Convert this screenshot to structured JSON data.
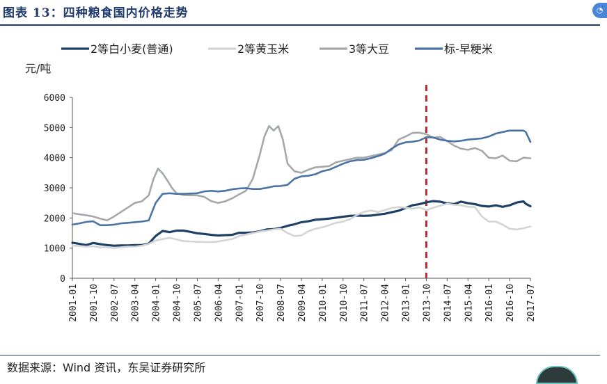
{
  "header": {
    "title": "图表 13：四种粮食国内价格走势"
  },
  "footer": {
    "source": "数据来源：Wind 资讯，东吴证券研究所"
  },
  "chart_data": {
    "type": "line",
    "ylabel": "元/吨",
    "ylim": [
      0,
      6000
    ],
    "yticks": [
      0,
      1000,
      2000,
      3000,
      4000,
      5000,
      6000
    ],
    "xlim": [
      "2001-01",
      "2017-07"
    ],
    "xticks": [
      "2001-01",
      "2001-10",
      "2002-07",
      "2003-04",
      "2004-01",
      "2004-10",
      "2005-07",
      "2006-04",
      "2007-01",
      "2007-10",
      "2008-07",
      "2009-04",
      "2010-01",
      "2010-10",
      "2011-07",
      "2012-04",
      "2013-01",
      "2013-10",
      "2014-07",
      "2015-04",
      "2016-01",
      "2016-10",
      "2017-07"
    ],
    "grid": false,
    "legend_position": "top",
    "reference_line": {
      "x": "2013-10",
      "style": "dashed",
      "color": "#c0282c"
    },
    "series": [
      {
        "name": "2等白小麦(普通)",
        "color": "#1e3f66",
        "points": [
          [
            "2001-01",
            1180
          ],
          [
            "2001-04",
            1140
          ],
          [
            "2001-07",
            1100
          ],
          [
            "2001-10",
            1170
          ],
          [
            "2002-01",
            1130
          ],
          [
            "2002-04",
            1100
          ],
          [
            "2002-07",
            1080
          ],
          [
            "2002-10",
            1090
          ],
          [
            "2003-01",
            1090
          ],
          [
            "2003-04",
            1100
          ],
          [
            "2003-07",
            1100
          ],
          [
            "2003-10",
            1150
          ],
          [
            "2004-01",
            1400
          ],
          [
            "2004-04",
            1570
          ],
          [
            "2004-07",
            1530
          ],
          [
            "2004-10",
            1580
          ],
          [
            "2005-01",
            1580
          ],
          [
            "2005-04",
            1540
          ],
          [
            "2005-07",
            1490
          ],
          [
            "2005-10",
            1470
          ],
          [
            "2006-01",
            1440
          ],
          [
            "2006-04",
            1420
          ],
          [
            "2006-07",
            1430
          ],
          [
            "2006-10",
            1440
          ],
          [
            "2007-01",
            1510
          ],
          [
            "2007-04",
            1510
          ],
          [
            "2007-07",
            1520
          ],
          [
            "2007-10",
            1560
          ],
          [
            "2008-01",
            1620
          ],
          [
            "2008-04",
            1630
          ],
          [
            "2008-07",
            1670
          ],
          [
            "2008-10",
            1740
          ],
          [
            "2009-01",
            1790
          ],
          [
            "2009-04",
            1860
          ],
          [
            "2009-07",
            1890
          ],
          [
            "2009-10",
            1940
          ],
          [
            "2010-01",
            1960
          ],
          [
            "2010-04",
            1980
          ],
          [
            "2010-07",
            2010
          ],
          [
            "2010-10",
            2040
          ],
          [
            "2011-01",
            2070
          ],
          [
            "2011-04",
            2080
          ],
          [
            "2011-07",
            2070
          ],
          [
            "2011-10",
            2080
          ],
          [
            "2012-01",
            2110
          ],
          [
            "2012-04",
            2140
          ],
          [
            "2012-07",
            2190
          ],
          [
            "2012-10",
            2240
          ],
          [
            "2013-01",
            2330
          ],
          [
            "2013-04",
            2420
          ],
          [
            "2013-07",
            2460
          ],
          [
            "2013-10",
            2520
          ],
          [
            "2014-01",
            2560
          ],
          [
            "2014-04",
            2540
          ],
          [
            "2014-07",
            2480
          ],
          [
            "2014-10",
            2460
          ],
          [
            "2015-01",
            2540
          ],
          [
            "2015-04",
            2490
          ],
          [
            "2015-07",
            2460
          ],
          [
            "2015-10",
            2400
          ],
          [
            "2016-01",
            2380
          ],
          [
            "2016-04",
            2420
          ],
          [
            "2016-07",
            2370
          ],
          [
            "2016-10",
            2420
          ],
          [
            "2017-01",
            2510
          ],
          [
            "2017-04",
            2550
          ],
          [
            "2017-05",
            2470
          ],
          [
            "2017-07",
            2390
          ]
        ]
      },
      {
        "name": "2等黄玉米",
        "color": "#d2d4d6",
        "points": [
          [
            "2001-01",
            1080
          ],
          [
            "2001-04",
            1070
          ],
          [
            "2001-07",
            1050
          ],
          [
            "2001-10",
            1060
          ],
          [
            "2002-01",
            1030
          ],
          [
            "2002-04",
            1030
          ],
          [
            "2002-07",
            1000
          ],
          [
            "2002-10",
            1030
          ],
          [
            "2003-01",
            1050
          ],
          [
            "2003-04",
            1050
          ],
          [
            "2003-07",
            1080
          ],
          [
            "2003-10",
            1140
          ],
          [
            "2004-01",
            1250
          ],
          [
            "2004-04",
            1300
          ],
          [
            "2004-07",
            1340
          ],
          [
            "2004-10",
            1290
          ],
          [
            "2005-01",
            1230
          ],
          [
            "2005-04",
            1220
          ],
          [
            "2005-07",
            1210
          ],
          [
            "2005-10",
            1200
          ],
          [
            "2006-01",
            1200
          ],
          [
            "2006-04",
            1220
          ],
          [
            "2006-07",
            1260
          ],
          [
            "2006-10",
            1300
          ],
          [
            "2007-01",
            1400
          ],
          [
            "2007-04",
            1450
          ],
          [
            "2007-07",
            1500
          ],
          [
            "2007-10",
            1550
          ],
          [
            "2008-01",
            1580
          ],
          [
            "2008-04",
            1620
          ],
          [
            "2008-07",
            1640
          ],
          [
            "2008-10",
            1500
          ],
          [
            "2009-01",
            1400
          ],
          [
            "2009-04",
            1420
          ],
          [
            "2009-07",
            1560
          ],
          [
            "2009-10",
            1640
          ],
          [
            "2010-01",
            1690
          ],
          [
            "2010-04",
            1760
          ],
          [
            "2010-07",
            1840
          ],
          [
            "2010-10",
            1880
          ],
          [
            "2011-01",
            1960
          ],
          [
            "2011-04",
            2100
          ],
          [
            "2011-07",
            2200
          ],
          [
            "2011-10",
            2250
          ],
          [
            "2012-01",
            2200
          ],
          [
            "2012-04",
            2260
          ],
          [
            "2012-07",
            2330
          ],
          [
            "2012-10",
            2360
          ],
          [
            "2013-01",
            2340
          ],
          [
            "2013-04",
            2310
          ],
          [
            "2013-07",
            2350
          ],
          [
            "2013-10",
            2260
          ],
          [
            "2014-01",
            2340
          ],
          [
            "2014-04",
            2410
          ],
          [
            "2014-07",
            2470
          ],
          [
            "2014-10",
            2440
          ],
          [
            "2015-01",
            2420
          ],
          [
            "2015-04",
            2370
          ],
          [
            "2015-07",
            2360
          ],
          [
            "2015-10",
            2050
          ],
          [
            "2016-01",
            1880
          ],
          [
            "2016-04",
            1880
          ],
          [
            "2016-07",
            1780
          ],
          [
            "2016-10",
            1640
          ],
          [
            "2017-01",
            1620
          ],
          [
            "2017-04",
            1660
          ],
          [
            "2017-07",
            1720
          ]
        ]
      },
      {
        "name": "3等大豆",
        "color": "#a5a8aa",
        "points": [
          [
            "2001-01",
            2160
          ],
          [
            "2001-04",
            2120
          ],
          [
            "2001-07",
            2090
          ],
          [
            "2001-10",
            2050
          ],
          [
            "2002-01",
            1980
          ],
          [
            "2002-04",
            1920
          ],
          [
            "2002-07",
            2050
          ],
          [
            "2002-10",
            2200
          ],
          [
            "2003-01",
            2350
          ],
          [
            "2003-04",
            2500
          ],
          [
            "2003-07",
            2550
          ],
          [
            "2003-10",
            2750
          ],
          [
            "2003-12",
            3280
          ],
          [
            "2004-02",
            3640
          ],
          [
            "2004-04",
            3480
          ],
          [
            "2004-06",
            3250
          ],
          [
            "2004-08",
            3000
          ],
          [
            "2004-10",
            2820
          ],
          [
            "2005-01",
            2760
          ],
          [
            "2005-04",
            2750
          ],
          [
            "2005-07",
            2750
          ],
          [
            "2005-10",
            2700
          ],
          [
            "2006-01",
            2560
          ],
          [
            "2006-04",
            2500
          ],
          [
            "2006-07",
            2550
          ],
          [
            "2006-10",
            2650
          ],
          [
            "2007-01",
            2780
          ],
          [
            "2007-04",
            2900
          ],
          [
            "2007-07",
            3300
          ],
          [
            "2007-10",
            4100
          ],
          [
            "2007-12",
            4700
          ],
          [
            "2008-02",
            5050
          ],
          [
            "2008-04",
            4900
          ],
          [
            "2008-06",
            5050
          ],
          [
            "2008-08",
            4600
          ],
          [
            "2008-10",
            3800
          ],
          [
            "2009-01",
            3550
          ],
          [
            "2009-04",
            3500
          ],
          [
            "2009-07",
            3600
          ],
          [
            "2009-10",
            3680
          ],
          [
            "2010-01",
            3700
          ],
          [
            "2010-04",
            3720
          ],
          [
            "2010-07",
            3850
          ],
          [
            "2010-10",
            3900
          ],
          [
            "2011-01",
            3950
          ],
          [
            "2011-04",
            4000
          ],
          [
            "2011-07",
            4000
          ],
          [
            "2011-10",
            4050
          ],
          [
            "2012-01",
            4100
          ],
          [
            "2012-04",
            4150
          ],
          [
            "2012-07",
            4250
          ],
          [
            "2012-10",
            4600
          ],
          [
            "2013-01",
            4700
          ],
          [
            "2013-04",
            4820
          ],
          [
            "2013-07",
            4830
          ],
          [
            "2013-10",
            4780
          ],
          [
            "2014-01",
            4660
          ],
          [
            "2014-04",
            4690
          ],
          [
            "2014-07",
            4550
          ],
          [
            "2014-10",
            4400
          ],
          [
            "2015-01",
            4300
          ],
          [
            "2015-04",
            4260
          ],
          [
            "2015-07",
            4320
          ],
          [
            "2015-10",
            4230
          ],
          [
            "2016-01",
            4000
          ],
          [
            "2016-04",
            3980
          ],
          [
            "2016-07",
            4070
          ],
          [
            "2016-10",
            3900
          ],
          [
            "2017-01",
            3880
          ],
          [
            "2017-04",
            4000
          ],
          [
            "2017-07",
            3980
          ]
        ]
      },
      {
        "name": "标-早粳米",
        "color": "#4a73a4",
        "points": [
          [
            "2001-01",
            1780
          ],
          [
            "2001-04",
            1820
          ],
          [
            "2001-07",
            1870
          ],
          [
            "2001-10",
            1890
          ],
          [
            "2002-01",
            1760
          ],
          [
            "2002-04",
            1760
          ],
          [
            "2002-07",
            1780
          ],
          [
            "2002-10",
            1820
          ],
          [
            "2003-01",
            1840
          ],
          [
            "2003-04",
            1860
          ],
          [
            "2003-07",
            1880
          ],
          [
            "2003-10",
            1920
          ],
          [
            "2004-01",
            2500
          ],
          [
            "2004-04",
            2800
          ],
          [
            "2004-07",
            2820
          ],
          [
            "2004-10",
            2800
          ],
          [
            "2005-01",
            2800
          ],
          [
            "2005-04",
            2810
          ],
          [
            "2005-07",
            2820
          ],
          [
            "2005-10",
            2880
          ],
          [
            "2006-01",
            2900
          ],
          [
            "2006-04",
            2880
          ],
          [
            "2006-07",
            2900
          ],
          [
            "2006-10",
            2950
          ],
          [
            "2007-01",
            2980
          ],
          [
            "2007-04",
            2990
          ],
          [
            "2007-07",
            2960
          ],
          [
            "2007-10",
            2960
          ],
          [
            "2008-01",
            3000
          ],
          [
            "2008-04",
            3050
          ],
          [
            "2008-07",
            3060
          ],
          [
            "2008-10",
            3100
          ],
          [
            "2009-01",
            3300
          ],
          [
            "2009-04",
            3380
          ],
          [
            "2009-07",
            3400
          ],
          [
            "2009-10",
            3450
          ],
          [
            "2010-01",
            3550
          ],
          [
            "2010-04",
            3600
          ],
          [
            "2010-07",
            3700
          ],
          [
            "2010-10",
            3800
          ],
          [
            "2011-01",
            3880
          ],
          [
            "2011-04",
            3920
          ],
          [
            "2011-07",
            3930
          ],
          [
            "2011-10",
            3980
          ],
          [
            "2012-01",
            4050
          ],
          [
            "2012-04",
            4130
          ],
          [
            "2012-07",
            4300
          ],
          [
            "2012-10",
            4440
          ],
          [
            "2013-01",
            4510
          ],
          [
            "2013-04",
            4530
          ],
          [
            "2013-07",
            4570
          ],
          [
            "2013-10",
            4680
          ],
          [
            "2014-01",
            4670
          ],
          [
            "2014-04",
            4600
          ],
          [
            "2014-07",
            4560
          ],
          [
            "2014-10",
            4540
          ],
          [
            "2015-01",
            4560
          ],
          [
            "2015-04",
            4600
          ],
          [
            "2015-07",
            4620
          ],
          [
            "2015-10",
            4640
          ],
          [
            "2016-01",
            4700
          ],
          [
            "2016-04",
            4800
          ],
          [
            "2016-07",
            4850
          ],
          [
            "2016-10",
            4900
          ],
          [
            "2017-01",
            4900
          ],
          [
            "2017-04",
            4900
          ],
          [
            "2017-05",
            4850
          ],
          [
            "2017-07",
            4520
          ]
        ]
      }
    ]
  }
}
